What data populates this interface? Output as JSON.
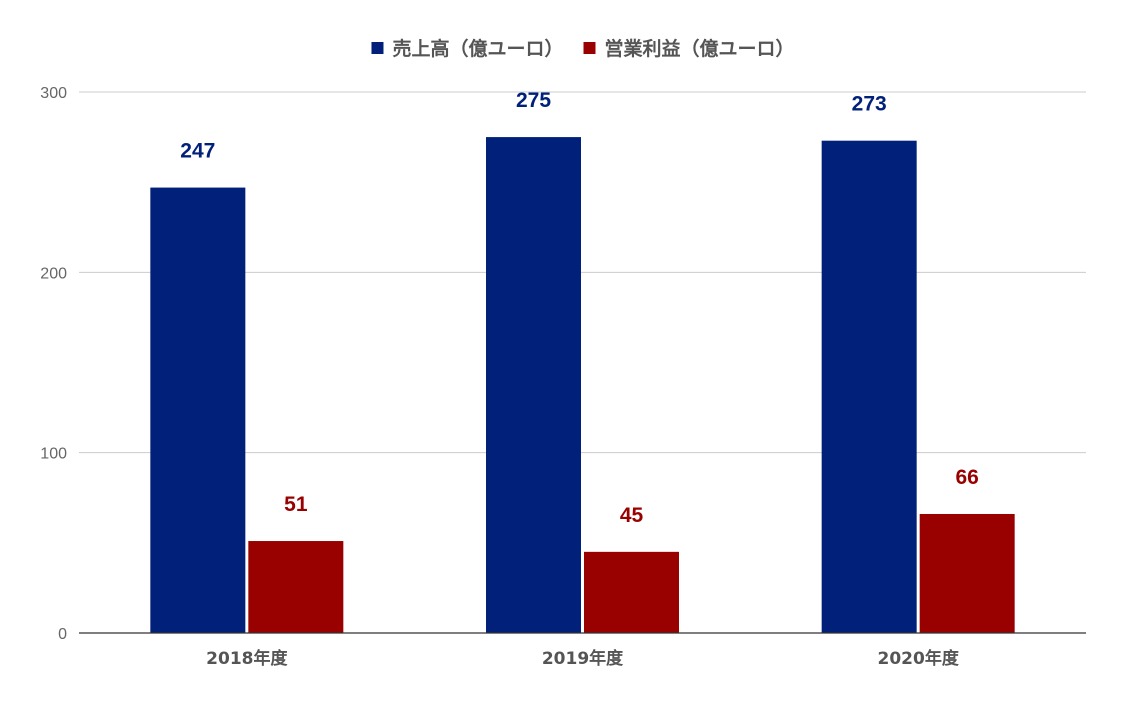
{
  "chart_data": {
    "type": "bar",
    "title": "",
    "xlabel": "",
    "ylabel": "",
    "categories": [
      "2018年度",
      "2019年度",
      "2020年度"
    ],
    "series": [
      {
        "name": "売上高（億ユーロ）",
        "values": [
          247,
          275,
          273
        ],
        "color": "#00207a"
      },
      {
        "name": "営業利益（億ユーロ）",
        "values": [
          51,
          45,
          66
        ],
        "color": "#990000"
      }
    ],
    "ylim": [
      0,
      300
    ],
    "yticks": [
      0,
      100,
      200,
      300
    ],
    "grid": true,
    "legend_position": "top-center",
    "data_labels": true
  }
}
